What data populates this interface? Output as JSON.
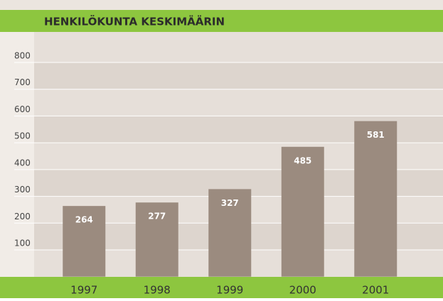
{
  "chart_data": {
    "type": "bar",
    "title": "HENKILÖKUNTA KESKIMÄÄRIN",
    "categories": [
      "1997",
      "1998",
      "1999",
      "2000",
      "2001"
    ],
    "values": [
      264,
      277,
      327,
      485,
      581
    ],
    "color": "#9b8b7f",
    "ylim": [
      0,
      900
    ],
    "yticks": [
      100,
      200,
      300,
      400,
      500,
      600,
      700,
      800
    ],
    "grid": true
  }
}
